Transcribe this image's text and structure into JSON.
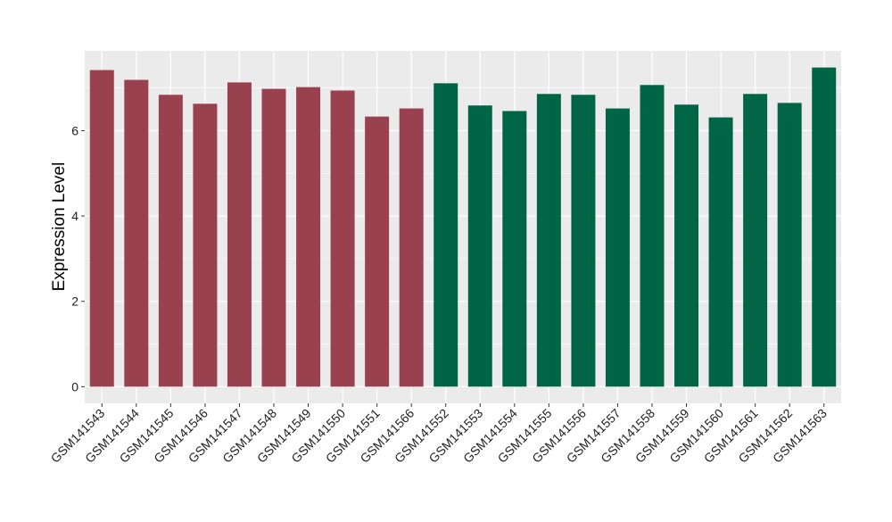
{
  "chart_data": {
    "type": "bar",
    "title": "",
    "xlabel": "",
    "ylabel": "Expression Level",
    "ylim": [
      -0.39,
      7.87
    ],
    "yticks": [
      0,
      2,
      4,
      6
    ],
    "grid": true,
    "legend": "none",
    "categories": [
      "GSM141543",
      "GSM141544",
      "GSM141545",
      "GSM141546",
      "GSM141547",
      "GSM141548",
      "GSM141549",
      "GSM141550",
      "GSM141551",
      "GSM141566",
      "GSM141552",
      "GSM141553",
      "GSM141554",
      "GSM141555",
      "GSM141556",
      "GSM141557",
      "GSM141558",
      "GSM141559",
      "GSM141560",
      "GSM141561",
      "GSM141562",
      "GSM141563"
    ],
    "values": [
      7.42,
      7.19,
      6.84,
      6.63,
      7.13,
      6.98,
      7.02,
      6.94,
      6.33,
      6.52,
      7.11,
      6.59,
      6.46,
      6.86,
      6.84,
      6.52,
      7.07,
      6.61,
      6.31,
      6.86,
      6.65,
      7.48
    ],
    "groups": [
      "a",
      "a",
      "a",
      "a",
      "a",
      "a",
      "a",
      "a",
      "a",
      "a",
      "b",
      "b",
      "b",
      "b",
      "b",
      "b",
      "b",
      "b",
      "b",
      "b",
      "b",
      "b"
    ],
    "colors": {
      "a": "#9a4150",
      "b": "#006545",
      "panel": "#ebebeb",
      "grid": "#ffffff"
    }
  }
}
